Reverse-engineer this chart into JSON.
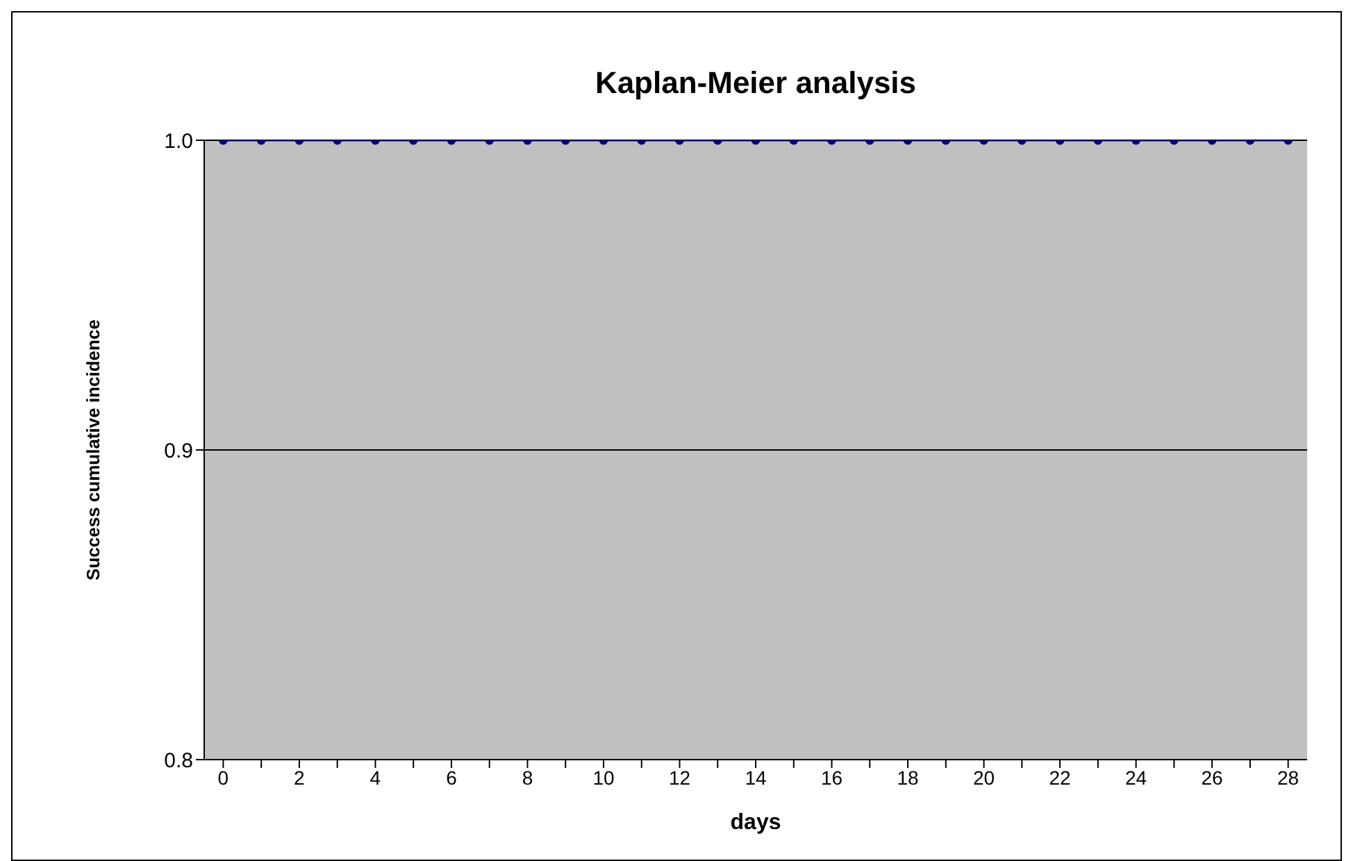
{
  "chart_data": {
    "type": "line",
    "title": "Kaplan-Meier analysis",
    "xlabel": "days",
    "ylabel": "Success cumulative incidence",
    "x": [
      0,
      1,
      2,
      3,
      4,
      5,
      6,
      7,
      8,
      9,
      10,
      11,
      12,
      13,
      14,
      15,
      16,
      17,
      18,
      19,
      20,
      21,
      22,
      23,
      24,
      25,
      26,
      27,
      28
    ],
    "values": [
      1,
      1,
      1,
      1,
      1,
      1,
      1,
      1,
      1,
      1,
      1,
      1,
      1,
      1,
      1,
      1,
      1,
      1,
      1,
      1,
      1,
      1,
      1,
      1,
      1,
      1,
      1,
      1,
      1
    ],
    "color": "#000080",
    "marker": "circle",
    "line_style": "solid",
    "xlim": [
      -0.5,
      28.5
    ],
    "xticks": [
      0,
      {
        "value": 1,
        "label": null
      },
      2,
      {
        "value": 3,
        "label": null
      },
      4,
      {
        "value": 5,
        "label": null
      },
      6,
      {
        "value": 7,
        "label": null
      },
      8,
      {
        "value": 9,
        "label": null
      },
      10,
      {
        "value": 11,
        "label": null
      },
      12,
      {
        "value": 13,
        "label": null
      },
      14,
      {
        "value": 15,
        "label": null
      },
      16,
      {
        "value": 17,
        "label": null
      },
      18,
      {
        "value": 19,
        "label": null
      },
      20,
      {
        "value": 21,
        "label": null
      },
      22,
      {
        "value": 23,
        "label": null
      },
      24,
      {
        "value": 25,
        "label": null
      },
      26,
      {
        "value": 27,
        "label": null
      },
      28
    ],
    "ylim": [
      0.8,
      1.0
    ],
    "yticks": [
      0.8,
      0.9,
      {
        "value": 1,
        "label": "1.0"
      }
    ],
    "grid": "y",
    "legend": false
  }
}
